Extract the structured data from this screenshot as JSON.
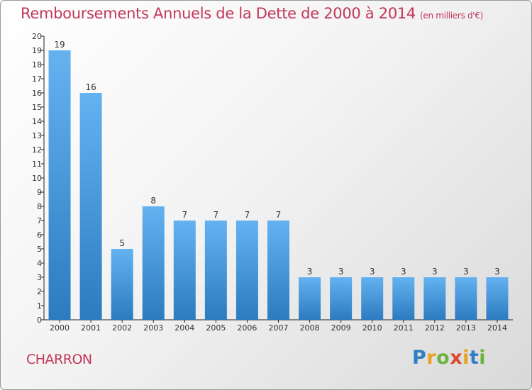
{
  "header": {
    "title": "Remboursements Annuels de la Dette de 2000 à 2014",
    "subtitle": "(en milliers d'€)"
  },
  "footer": {
    "town": "CHARRON",
    "logo": "Proxiti"
  },
  "colors": {
    "bar_top": "#64b2f0",
    "bar_bottom": "#2c7bc0",
    "title": "#c2375a"
  },
  "chart_data": {
    "type": "bar",
    "title": "Remboursements Annuels de la Dette de 2000 à 2014",
    "subtitle": "(en milliers d'€)",
    "xlabel": "",
    "ylabel": "",
    "categories": [
      "2000",
      "2001",
      "2002",
      "2003",
      "2004",
      "2005",
      "2006",
      "2007",
      "2008",
      "2009",
      "2010",
      "2011",
      "2012",
      "2013",
      "2014"
    ],
    "values": [
      19,
      16,
      5,
      8,
      7,
      7,
      7,
      7,
      3,
      3,
      3,
      3,
      3,
      3,
      3
    ],
    "ylim": [
      0,
      20
    ],
    "yticks": [
      0,
      1,
      2,
      3,
      4,
      5,
      6,
      7,
      8,
      9,
      10,
      11,
      12,
      13,
      14,
      15,
      16,
      17,
      18,
      19,
      20
    ],
    "grid": false,
    "legend": "none",
    "data_labels": true
  }
}
